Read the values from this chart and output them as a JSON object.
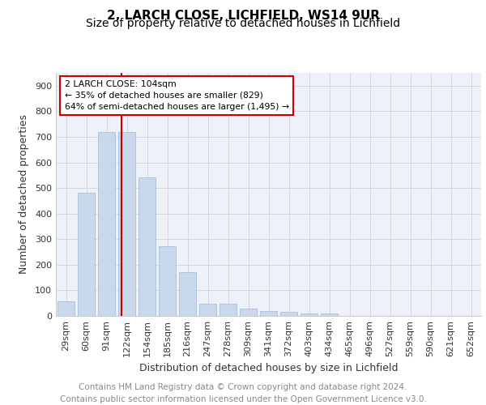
{
  "title1": "2, LARCH CLOSE, LICHFIELD, WS14 9UR",
  "title2": "Size of property relative to detached houses in Lichfield",
  "xlabel": "Distribution of detached houses by size in Lichfield",
  "ylabel": "Number of detached properties",
  "categories": [
    "29sqm",
    "60sqm",
    "91sqm",
    "122sqm",
    "154sqm",
    "185sqm",
    "216sqm",
    "247sqm",
    "278sqm",
    "309sqm",
    "341sqm",
    "372sqm",
    "403sqm",
    "434sqm",
    "465sqm",
    "496sqm",
    "527sqm",
    "559sqm",
    "590sqm",
    "621sqm",
    "652sqm"
  ],
  "values": [
    57,
    480,
    718,
    718,
    543,
    272,
    170,
    46,
    46,
    30,
    18,
    15,
    8,
    8,
    0,
    0,
    0,
    0,
    0,
    0,
    0
  ],
  "bar_color": "#c8d9ee",
  "bar_edge_color": "#a0b8d8",
  "redline_x": 2.75,
  "annotation_text": "2 LARCH CLOSE: 104sqm\n← 35% of detached houses are smaller (829)\n64% of semi-detached houses are larger (1,495) →",
  "annotation_box_color": "#ffffff",
  "annotation_box_edgecolor": "#cc0000",
  "redline_color": "#cc0000",
  "ylim": [
    0,
    950
  ],
  "yticks": [
    0,
    100,
    200,
    300,
    400,
    500,
    600,
    700,
    800,
    900
  ],
  "grid_color": "#d0d8e8",
  "background_color": "#eef2f8",
  "footer_text": "Contains HM Land Registry data © Crown copyright and database right 2024.\nContains public sector information licensed under the Open Government Licence v3.0.",
  "title1_fontsize": 11,
  "title2_fontsize": 10,
  "xlabel_fontsize": 9,
  "ylabel_fontsize": 9,
  "tick_fontsize": 8,
  "footer_fontsize": 7.5
}
